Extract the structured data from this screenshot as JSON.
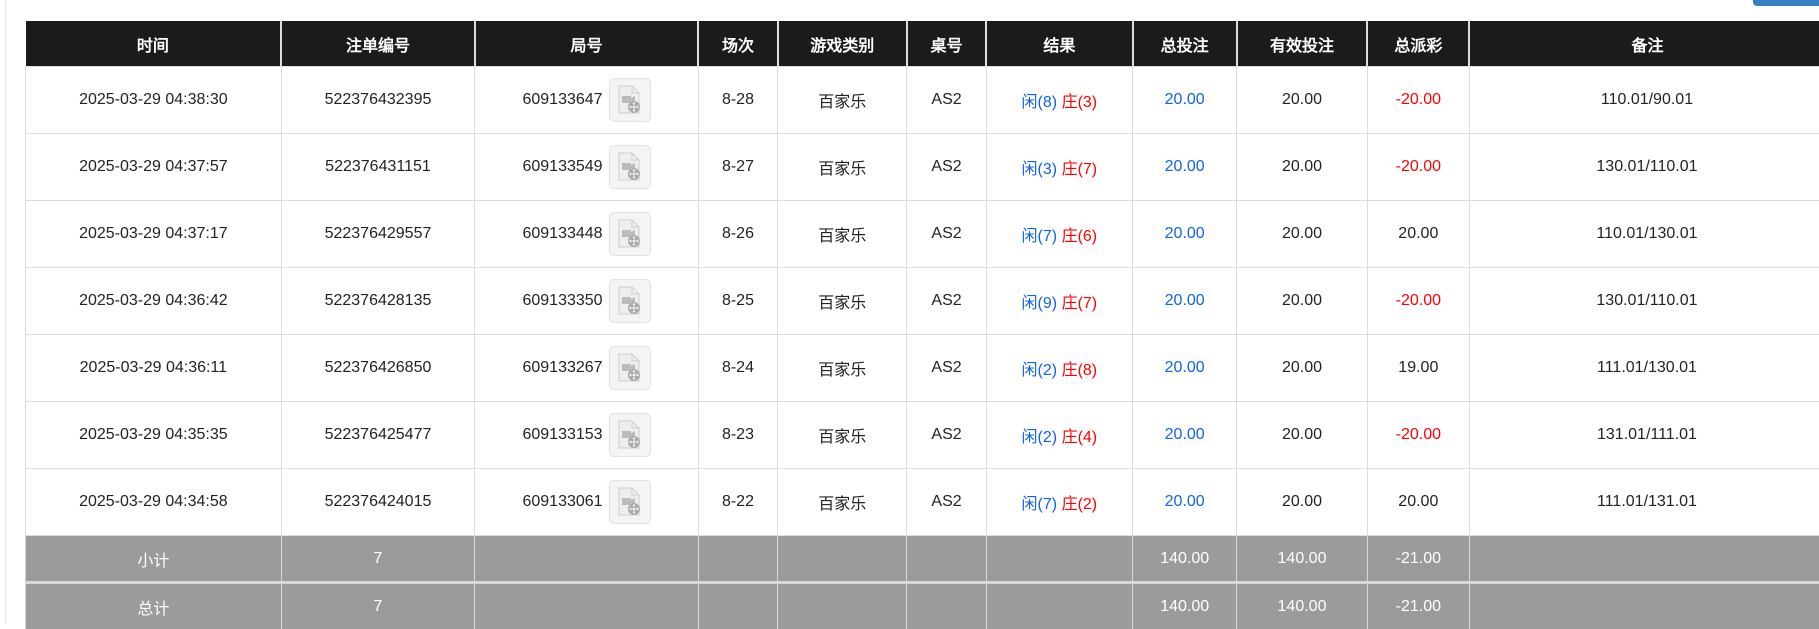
{
  "columns": [
    "时间",
    "注单编号",
    "局号",
    "场次",
    "游戏类别",
    "桌号",
    "结果",
    "总投注",
    "有效投注",
    "总派彩",
    "备注"
  ],
  "rows": [
    {
      "time": "2025-03-29 04:38:30",
      "bet_id": "522376432395",
      "round": "609133647",
      "shoe": "8-28",
      "game": "百家乐",
      "table": "AS2",
      "player": "闲(8)",
      "banker": "庄(3)",
      "total_bet": "20.00",
      "valid_bet": "20.00",
      "payout": "-20.00",
      "payout_negative": true,
      "note": "110.01/90.01"
    },
    {
      "time": "2025-03-29 04:37:57",
      "bet_id": "522376431151",
      "round": "609133549",
      "shoe": "8-27",
      "game": "百家乐",
      "table": "AS2",
      "player": "闲(3)",
      "banker": "庄(7)",
      "total_bet": "20.00",
      "valid_bet": "20.00",
      "payout": "-20.00",
      "payout_negative": true,
      "note": "130.01/110.01"
    },
    {
      "time": "2025-03-29 04:37:17",
      "bet_id": "522376429557",
      "round": "609133448",
      "shoe": "8-26",
      "game": "百家乐",
      "table": "AS2",
      "player": "闲(7)",
      "banker": "庄(6)",
      "total_bet": "20.00",
      "valid_bet": "20.00",
      "payout": "20.00",
      "payout_negative": false,
      "note": "110.01/130.01"
    },
    {
      "time": "2025-03-29 04:36:42",
      "bet_id": "522376428135",
      "round": "609133350",
      "shoe": "8-25",
      "game": "百家乐",
      "table": "AS2",
      "player": "闲(9)",
      "banker": "庄(7)",
      "total_bet": "20.00",
      "valid_bet": "20.00",
      "payout": "-20.00",
      "payout_negative": true,
      "note": "130.01/110.01"
    },
    {
      "time": "2025-03-29 04:36:11",
      "bet_id": "522376426850",
      "round": "609133267",
      "shoe": "8-24",
      "game": "百家乐",
      "table": "AS2",
      "player": "闲(2)",
      "banker": "庄(8)",
      "total_bet": "20.00",
      "valid_bet": "20.00",
      "payout": "19.00",
      "payout_negative": false,
      "note": "111.01/130.01"
    },
    {
      "time": "2025-03-29 04:35:35",
      "bet_id": "522376425477",
      "round": "609133153",
      "shoe": "8-23",
      "game": "百家乐",
      "table": "AS2",
      "player": "闲(2)",
      "banker": "庄(4)",
      "total_bet": "20.00",
      "valid_bet": "20.00",
      "payout": "-20.00",
      "payout_negative": true,
      "note": "131.01/111.01"
    },
    {
      "time": "2025-03-29 04:34:58",
      "bet_id": "522376424015",
      "round": "609133061",
      "shoe": "8-22",
      "game": "百家乐",
      "table": "AS2",
      "player": "闲(7)",
      "banker": "庄(2)",
      "total_bet": "20.00",
      "valid_bet": "20.00",
      "payout": "20.00",
      "payout_negative": false,
      "note": "111.01/131.01"
    }
  ],
  "subtotal": {
    "label": "小计",
    "count": "7",
    "total_bet": "140.00",
    "valid_bet": "140.00",
    "payout": "-21.00"
  },
  "total": {
    "label": "总计",
    "count": "7",
    "total_bet": "140.00",
    "valid_bet": "140.00",
    "payout": "-21.00"
  },
  "colors": {
    "header_bg": "#1b1b1b",
    "player": "#0f63e8",
    "negative": "#ff0000",
    "summary_bg": "#9b9b9b",
    "button": "#3a7fc1"
  },
  "icons": {
    "replay": "video-file-icon"
  }
}
